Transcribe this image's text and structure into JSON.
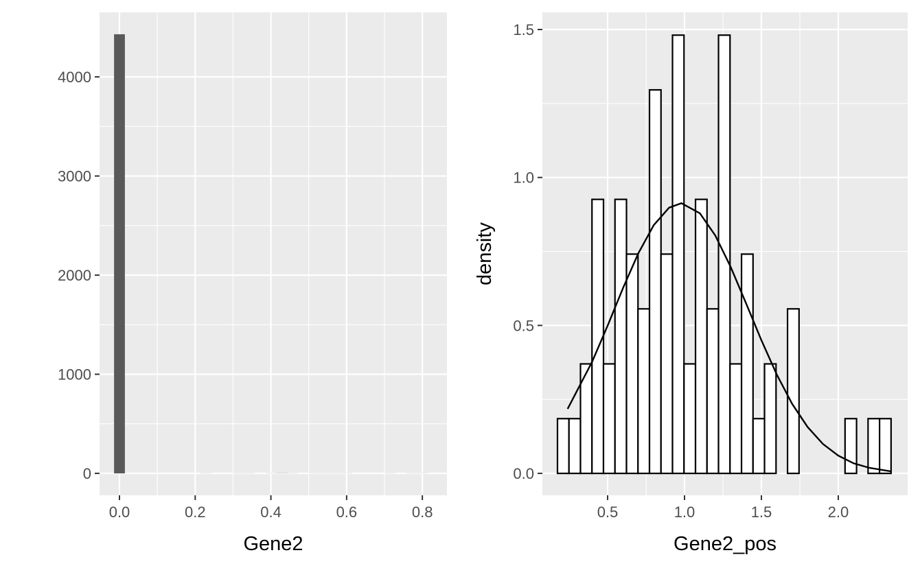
{
  "chart_data": [
    {
      "type": "histogram",
      "x_label": "Gene2",
      "bins": [
        -0.0143,
        0.0143,
        0.0429,
        0.0715,
        0.1001,
        0.1287,
        0.1573,
        0.1859,
        0.2145,
        0.2431,
        0.2717,
        0.3003,
        0.3289,
        0.3575,
        0.3861,
        0.4147,
        0.4433,
        0.4719,
        0.5005,
        0.5291,
        0.5577,
        0.5863,
        0.6149,
        0.6435,
        0.6721,
        0.7007,
        0.7293,
        0.7579,
        0.7865,
        0.8151,
        0.8437
      ],
      "values": [
        4430,
        0,
        0,
        0,
        0,
        0,
        0,
        0,
        1,
        0,
        0,
        1,
        1,
        0,
        1,
        2,
        1,
        0,
        1,
        1,
        1,
        1,
        0,
        0,
        0,
        1,
        0,
        1,
        1,
        0
      ],
      "color": "#595959",
      "xlim": [
        -0.0526,
        0.865
      ],
      "ylim": [
        -221,
        4651
      ],
      "xticks": [
        {
          "value": 0,
          "label": "0.0"
        },
        0.2,
        0.4,
        0.6,
        0.8
      ],
      "yticks": [
        0,
        1000,
        2000,
        3000,
        4000
      ],
      "grid": true
    },
    {
      "type": "histogram",
      "x_label": "Gene2_pos",
      "y_label": "density",
      "bins": [
        0.174,
        0.2488,
        0.3236,
        0.3984,
        0.4732,
        0.548,
        0.6228,
        0.6976,
        0.7724,
        0.8472,
        0.922,
        0.9968,
        1.0716,
        1.1464,
        1.2212,
        1.296,
        1.3708,
        1.4456,
        1.5204,
        1.5952,
        1.67,
        1.7448,
        1.8196,
        1.8944,
        1.9692,
        2.044,
        2.1188,
        2.1936,
        2.2684,
        2.3432
      ],
      "values": [
        0.185,
        0.185,
        0.37,
        0.926,
        0.37,
        0.926,
        0.741,
        0.556,
        1.296,
        0.741,
        1.481,
        0.37,
        0.926,
        0.556,
        1.481,
        0.37,
        0.741,
        0.185,
        0.37,
        0,
        0.556,
        0,
        0,
        0,
        0,
        0.185,
        0,
        0.185,
        0.185
      ],
      "color": "#FFFFFF",
      "edge_color": "#000000",
      "density_curve": {
        "color": "#000000",
        "x": [
          0.24,
          0.4,
          0.5,
          0.6,
          0.7,
          0.8,
          0.9,
          0.98,
          1.1,
          1.2,
          1.3,
          1.4,
          1.5,
          1.6,
          1.7,
          1.8,
          1.9,
          2.0,
          2.1,
          2.2,
          2.34
        ],
        "values": [
          0.218,
          0.378,
          0.499,
          0.626,
          0.744,
          0.839,
          0.898,
          0.913,
          0.879,
          0.804,
          0.698,
          0.575,
          0.45,
          0.334,
          0.235,
          0.157,
          0.0995,
          0.06,
          0.034,
          0.019,
          0.007
        ]
      },
      "xlim": [
        0.0759,
        2.451
      ],
      "ylim": [
        -0.074,
        1.558
      ],
      "xticks": [
        0.5,
        {
          "value": 1,
          "label": "1.0"
        },
        1.5,
        {
          "value": 2,
          "label": "2.0"
        }
      ],
      "yticks": [
        {
          "value": 0,
          "label": "0.0"
        },
        0.5,
        {
          "value": 1,
          "label": "1.0"
        },
        1.5
      ],
      "grid": true
    }
  ]
}
